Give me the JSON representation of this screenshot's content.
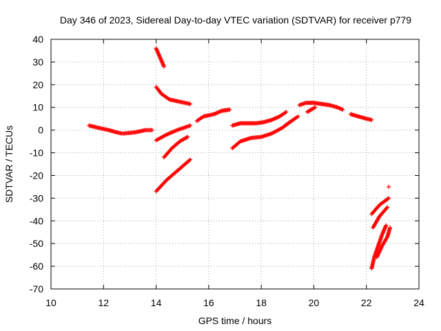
{
  "chart_data": {
    "type": "scatter",
    "title": "Day 346 of 2023, Sidereal Day-to-day VTEC variation (SDTVAR) for receiver p779",
    "xlabel": "GPS time / hours",
    "ylabel": "SDTVAR / TECUs",
    "xlim": [
      10,
      24
    ],
    "ylim": [
      -70,
      40
    ],
    "xticks": [
      10,
      12,
      14,
      16,
      18,
      20,
      22,
      24
    ],
    "yticks": [
      -70,
      -60,
      -50,
      -40,
      -30,
      -20,
      -10,
      0,
      10,
      20,
      30,
      40
    ],
    "grid": true,
    "marker": "plus",
    "color": "#ff0000",
    "segments": [
      {
        "x": [
          11.45,
          11.8,
          12.2,
          12.5,
          12.7
        ],
        "y": [
          2,
          1,
          0,
          -1,
          -1.5
        ]
      },
      {
        "x": [
          12.75,
          13.2,
          13.6,
          13.85
        ],
        "y": [
          -1.5,
          -1,
          0,
          0
        ]
      },
      {
        "x": [
          14.0,
          14.15,
          14.3
        ],
        "y": [
          36,
          32,
          28
        ]
      },
      {
        "x": [
          14.0,
          14.2,
          14.5,
          14.9,
          15.3
        ],
        "y": [
          19,
          16,
          13.5,
          12.5,
          11.5
        ]
      },
      {
        "x": [
          14.0,
          14.4,
          14.8,
          15.3
        ],
        "y": [
          -4.5,
          -2,
          0,
          2
        ]
      },
      {
        "x": [
          14.3,
          14.6,
          14.9,
          15.2
        ],
        "y": [
          -12,
          -8,
          -5,
          -3
        ]
      },
      {
        "x": [
          14.0,
          14.4,
          14.9,
          15.3
        ],
        "y": [
          -27,
          -22,
          -17,
          -13
        ]
      },
      {
        "x": [
          15.55,
          15.8,
          16.2,
          16.5,
          16.8
        ],
        "y": [
          4,
          6,
          7,
          8.5,
          9
        ]
      },
      {
        "x": [
          16.9,
          17.2,
          17.5,
          17.8,
          18.1,
          18.4,
          18.7,
          18.95
        ],
        "y": [
          2,
          3,
          3,
          3,
          3.5,
          4.5,
          6,
          8
        ]
      },
      {
        "x": [
          16.9,
          17.2,
          17.6,
          18.0,
          18.4,
          18.8,
          19.15
        ],
        "y": [
          -8,
          -5,
          -3.5,
          -3,
          -1.5,
          1,
          4
        ]
      },
      {
        "x": [
          18.9,
          19.15,
          19.4
        ],
        "y": [
          2,
          4,
          6
        ]
      },
      {
        "x": [
          19.45,
          19.7,
          20.0,
          20.3,
          20.6,
          20.9,
          21.1
        ],
        "y": [
          11,
          12,
          12,
          11.5,
          11,
          10,
          9
        ]
      },
      {
        "x": [
          19.75,
          19.9,
          20.05
        ],
        "y": [
          8,
          9,
          10
        ]
      },
      {
        "x": [
          21.4,
          21.7,
          22.0,
          22.2
        ],
        "y": [
          7,
          6,
          5,
          4.5
        ]
      },
      {
        "x": [
          22.85
        ],
        "y": [
          -25
        ]
      },
      {
        "x": [
          22.2,
          22.5,
          22.85
        ],
        "y": [
          -37,
          -33,
          -30
        ]
      },
      {
        "x": [
          22.25,
          22.5,
          22.8
        ],
        "y": [
          -43,
          -38,
          -34
        ]
      },
      {
        "x": [
          22.2,
          22.3,
          22.45,
          22.6,
          22.75
        ],
        "y": [
          -61,
          -56,
          -51,
          -46,
          -42
        ]
      },
      {
        "x": [
          22.4,
          22.6,
          22.8,
          22.9
        ],
        "y": [
          -56,
          -51,
          -47,
          -43
        ]
      }
    ]
  }
}
